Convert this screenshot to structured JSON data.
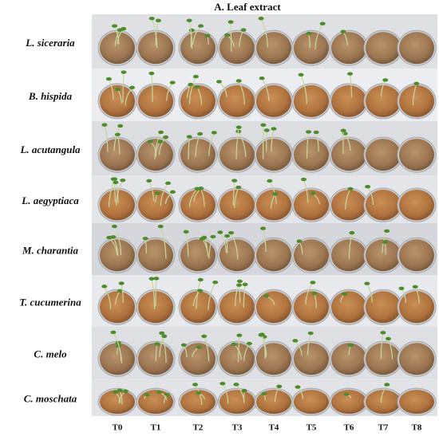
{
  "figure": {
    "title": "A. Leaf extract",
    "rows": [
      "L. siceraria",
      "B. hispida",
      "L. acutangula",
      "L. aegyptiaca",
      "M. charantia",
      "T. cucumerina",
      "C. melo",
      "C. moschata"
    ],
    "columns": [
      "T0",
      "T1",
      "T2",
      "T3",
      "T4",
      "T5",
      "T6",
      "T7",
      "T8"
    ]
  }
}
